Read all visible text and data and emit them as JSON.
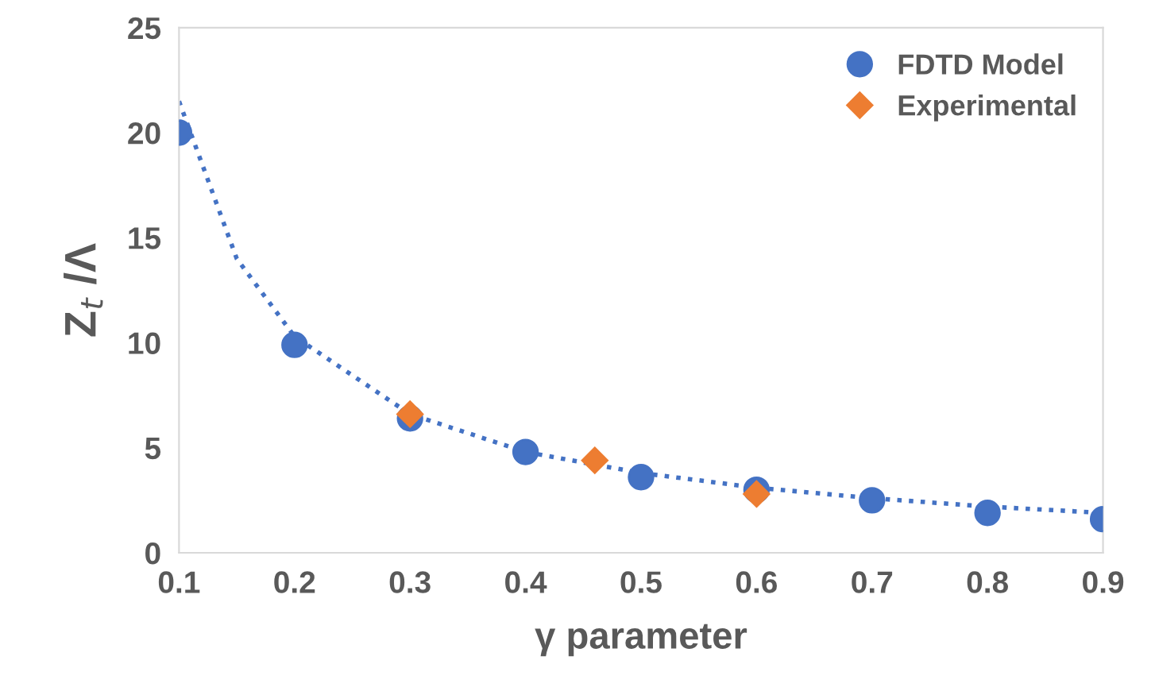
{
  "chart_data": {
    "type": "scatter",
    "xlabel": "γ parameter",
    "ylabel": "Z$_{t}$ /Λ",
    "xlim": [
      0.1,
      0.9
    ],
    "xticks": [
      0.1,
      0.2,
      0.3,
      0.4,
      0.5,
      0.6,
      0.7,
      0.8,
      0.9
    ],
    "ylim": [
      0,
      25
    ],
    "yticks": [
      0,
      5,
      10,
      15,
      20,
      25
    ],
    "grid": false,
    "legend": "top right",
    "series": [
      {
        "name": "FDTD Model",
        "color": "#4472c4",
        "marker": "circle",
        "x": [
          0.1,
          0.2,
          0.3,
          0.4,
          0.5,
          0.6,
          0.7,
          0.8,
          0.9
        ],
        "values": [
          20,
          9.9,
          6.4,
          4.8,
          3.6,
          3.0,
          2.5,
          1.9,
          1.6
        ]
      },
      {
        "name": "Experimental",
        "color": "#ed7d31",
        "marker": "diamond",
        "x": [
          0.3,
          0.46,
          0.6
        ],
        "values": [
          6.6,
          4.4,
          2.8
        ]
      },
      {
        "type": "line",
        "color": "#4472c4",
        "line_style": "dotted",
        "x": [
          0.1,
          0.15,
          0.2,
          0.3,
          0.4,
          0.5,
          0.6,
          0.7,
          0.8,
          0.9
        ],
        "values": [
          21.5,
          14,
          10.3,
          6.6,
          4.8,
          3.8,
          3.1,
          2.6,
          2.2,
          1.9
        ]
      }
    ]
  }
}
